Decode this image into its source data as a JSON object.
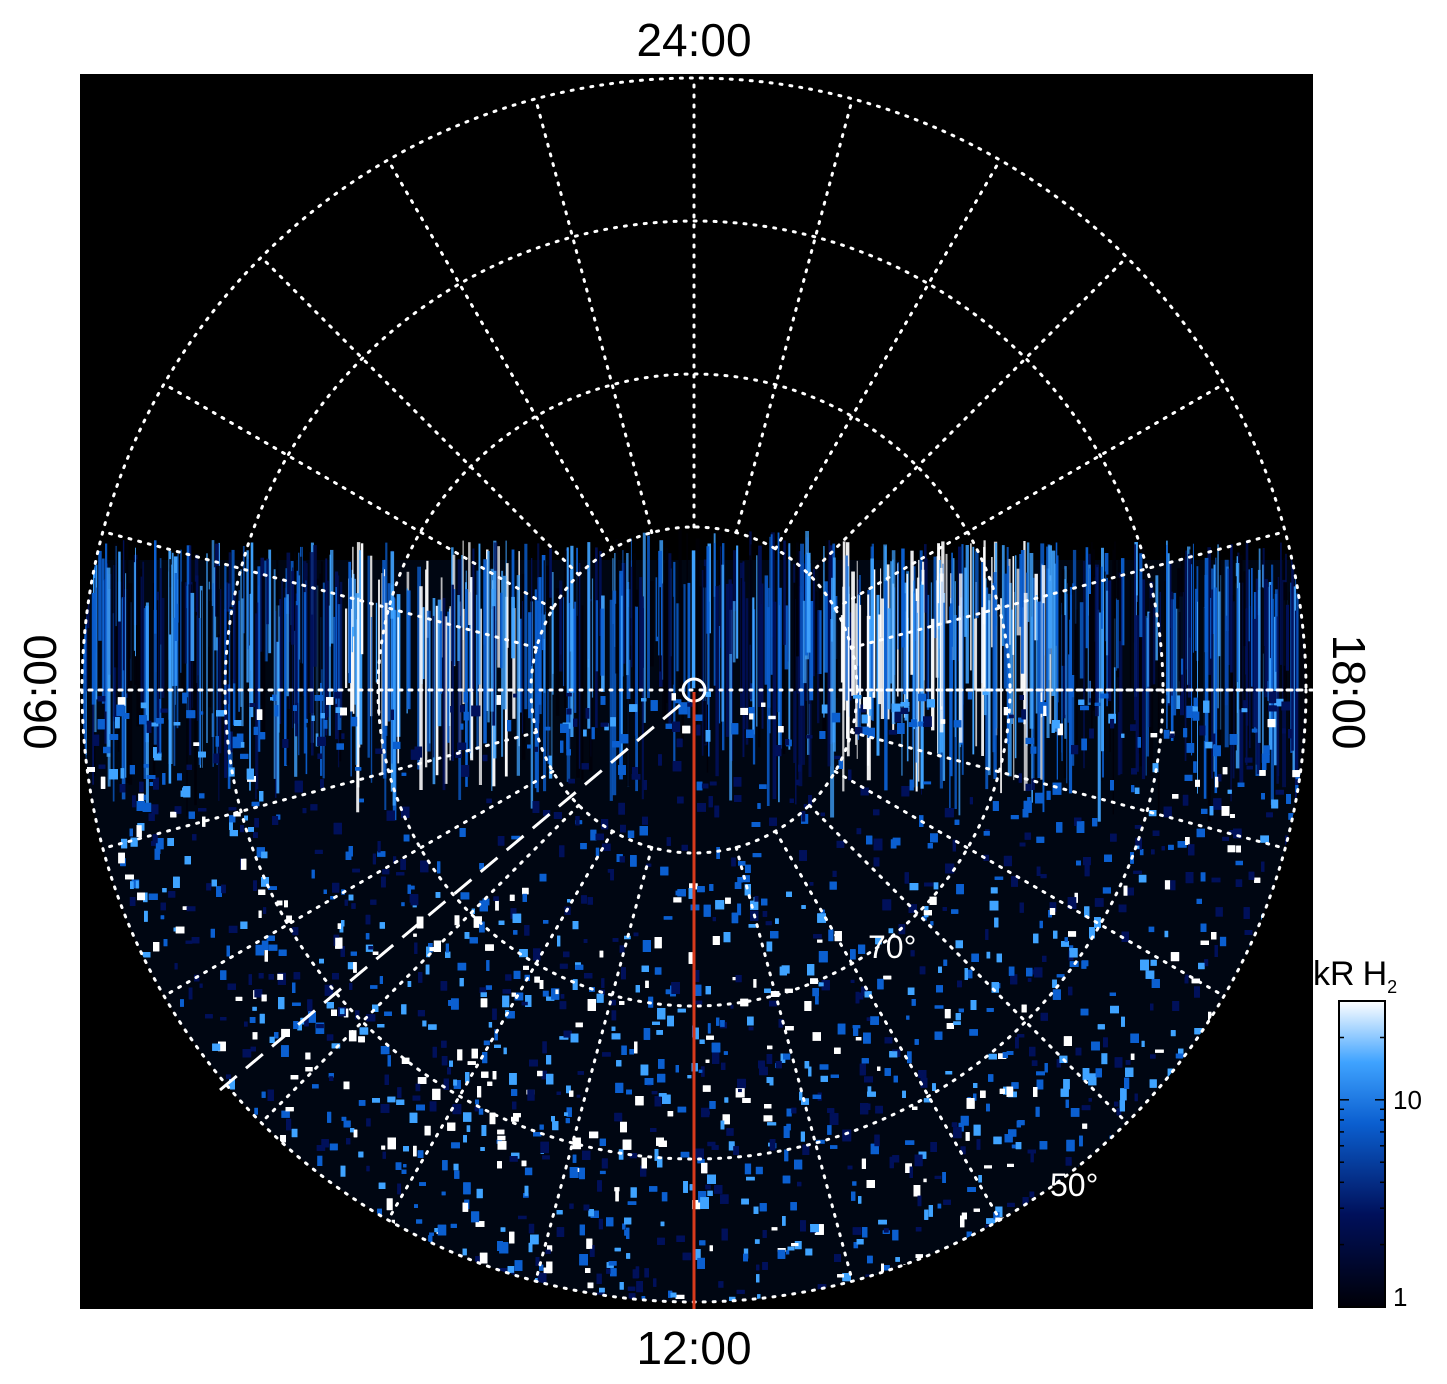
{
  "chart_data": {
    "type": "heatmap",
    "projection": "polar",
    "local_time_labels": {
      "top": "24:00",
      "bottom": "12:00",
      "left": "06:00",
      "right": "18:00"
    },
    "latitude_labels": [
      "70°",
      "50°"
    ],
    "colorbar": {
      "title": "kR",
      "species_base": "H",
      "species_sub": "2",
      "scale": "log",
      "range": [
        1,
        30
      ],
      "ticks": [
        {
          "value": 10,
          "label": "10"
        },
        {
          "value": 1,
          "label": "1"
        }
      ],
      "colormap": [
        "#000008",
        "#00105a",
        "#0b5fd0",
        "#3fa3ff",
        "#ffffff"
      ]
    },
    "meridian_line": {
      "local_time": "12:00",
      "color": "#d83a1c"
    },
    "grid": true,
    "background": "#000000"
  }
}
